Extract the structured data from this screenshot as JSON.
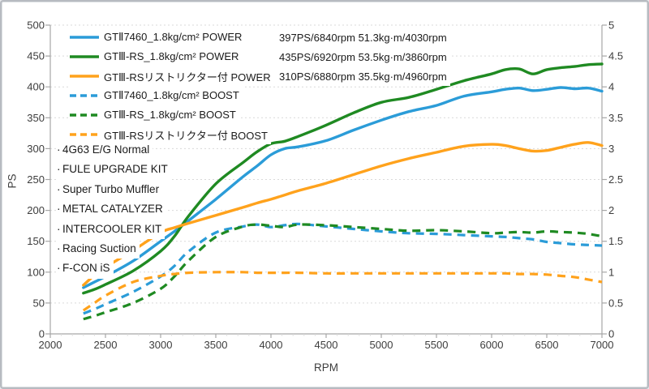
{
  "chart_data": {
    "type": "line",
    "title": "",
    "xlabel": "RPM",
    "ylabel": "PS",
    "x_range": [
      2000,
      7000
    ],
    "y_left_range": [
      0,
      500
    ],
    "y_right_range": [
      0,
      5
    ],
    "x_ticks": [
      2000,
      2500,
      3000,
      3500,
      4000,
      4500,
      5000,
      5500,
      6000,
      6500,
      7000
    ],
    "y_left_ticks": [
      0,
      50,
      100,
      150,
      200,
      250,
      300,
      350,
      400,
      450,
      500
    ],
    "y_right_ticks": [
      0,
      0.5,
      1,
      1.5,
      2,
      2.5,
      3,
      3.5,
      4,
      4.5,
      5
    ],
    "grid": "horizontal-dotted",
    "legend_position": "top-left-inside",
    "rpm": [
      2300,
      2400,
      2500,
      2750,
      3000,
      3125,
      3250,
      3500,
      3750,
      3875,
      4000,
      4125,
      4250,
      4500,
      4750,
      5000,
      5250,
      5500,
      5750,
      6000,
      6125,
      6250,
      6375,
      6500,
      6625,
      6750,
      6875,
      7000
    ],
    "series": [
      {
        "name": "GTⅡ7460_1.8kg/cm² POWER",
        "kind": "power",
        "axis": "left",
        "line": "solid",
        "color": "#2b9cd8",
        "stats": "397PS/6840rpm 51.3kg·m/4030rpm",
        "values": [
          75,
          84,
          93,
          118,
          150,
          166,
          183,
          218,
          255,
          272,
          290,
          300,
          303,
          313,
          330,
          346,
          360,
          370,
          385,
          392,
          396,
          398,
          394,
          396,
          399,
          397,
          398,
          393
        ]
      },
      {
        "name": "GTⅢ-RS_1.8kg/cm² POWER",
        "kind": "power",
        "axis": "left",
        "line": "solid",
        "color": "#1f8a22",
        "stats": "435PS/6920rpm 53.5kg·m/3860rpm",
        "values": [
          66,
          72,
          80,
          102,
          134,
          158,
          190,
          243,
          278,
          295,
          308,
          312,
          320,
          338,
          358,
          375,
          383,
          396,
          410,
          421,
          428,
          429,
          421,
          428,
          431,
          433,
          436,
          437
        ]
      },
      {
        "name": "GTⅢ-RSリストリクター付 POWER",
        "kind": "power",
        "axis": "left",
        "line": "solid",
        "color": "#ffa21c",
        "stats": "310PS/6880rpm 35.5kg·m/4960rpm",
        "values": [
          79,
          95,
          108,
          135,
          164,
          172,
          179,
          192,
          205,
          212,
          218,
          225,
          232,
          244,
          258,
          272,
          284,
          294,
          304,
          307,
          305,
          300,
          296,
          297,
          302,
          307,
          310,
          305
        ]
      },
      {
        "name": "GTⅡ7460_1.8kg/cm² BOOST",
        "kind": "boost",
        "axis": "right",
        "line": "dashed",
        "color": "#2b9cd8",
        "stats": "",
        "values": [
          0.33,
          0.4,
          0.48,
          0.68,
          0.93,
          1.1,
          1.33,
          1.64,
          1.74,
          1.77,
          1.73,
          1.76,
          1.78,
          1.74,
          1.7,
          1.66,
          1.63,
          1.62,
          1.6,
          1.58,
          1.57,
          1.55,
          1.53,
          1.49,
          1.47,
          1.45,
          1.44,
          1.43
        ]
      },
      {
        "name": "GTⅢ-RS_1.8kg/cm² BOOST",
        "kind": "boost",
        "axis": "right",
        "line": "dashed",
        "color": "#1f8a22",
        "stats": "",
        "values": [
          0.24,
          0.29,
          0.35,
          0.5,
          0.73,
          0.93,
          1.18,
          1.57,
          1.74,
          1.77,
          1.75,
          1.73,
          1.77,
          1.76,
          1.73,
          1.7,
          1.67,
          1.68,
          1.66,
          1.63,
          1.64,
          1.65,
          1.64,
          1.66,
          1.65,
          1.64,
          1.62,
          1.58
        ]
      },
      {
        "name": "GTⅢ-RSリストリクター付 BOOST",
        "kind": "boost",
        "axis": "right",
        "line": "dashed",
        "color": "#ffa21c",
        "stats": "",
        "values": [
          0.38,
          0.5,
          0.62,
          0.84,
          0.94,
          0.97,
          0.99,
          1.0,
          1.0,
          0.99,
          0.99,
          0.99,
          0.99,
          0.98,
          0.98,
          0.98,
          0.98,
          0.98,
          0.98,
          0.98,
          0.98,
          0.97,
          0.97,
          0.96,
          0.94,
          0.92,
          0.88,
          0.84
        ]
      }
    ],
    "annotations": {
      "bullet": "·",
      "items": [
        "4G63 E/G Normal",
        "FULE UPGRADE KIT",
        "Super Turbo Muffler",
        "METAL CATALYZER",
        "INTERCOOLER KIT",
        "Racing Suction",
        "F-CON iS"
      ]
    }
  },
  "colors": {
    "grid": "#d9d9d9",
    "axis": "#a6a6a6",
    "tick_text": "#3d3d3d",
    "text": "#1a1a1a",
    "background": "#ffffff"
  }
}
